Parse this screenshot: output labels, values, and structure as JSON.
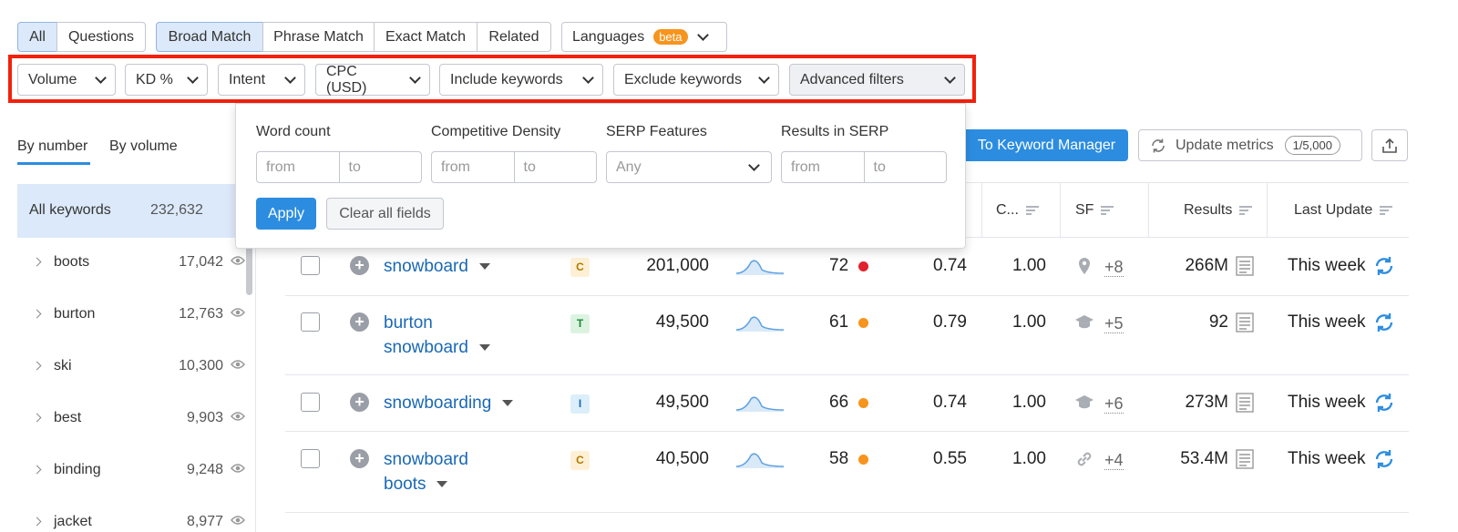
{
  "match_tabs": {
    "group1": [
      "All",
      "Questions"
    ],
    "group2": [
      "Broad Match",
      "Phrase Match",
      "Exact Match",
      "Related"
    ],
    "languages": "Languages",
    "beta": "beta"
  },
  "filters": [
    "Volume",
    "KD %",
    "Intent",
    "CPC (USD)",
    "Include keywords",
    "Exclude keywords",
    "Advanced filters"
  ],
  "advanced_panel": {
    "word_count": "Word count",
    "competitive_density": "Competitive Density",
    "serp_features": "SERP Features",
    "results_in_serp": "Results in SERP",
    "from": "from",
    "to": "to",
    "any": "Any",
    "apply": "Apply",
    "clear": "Clear all fields"
  },
  "view_tabs": {
    "by_number": "By number",
    "by_volume": "By volume"
  },
  "sidebar": {
    "all_label": "All keywords",
    "all_count": "232,632",
    "items": [
      {
        "label": "boots",
        "count": "17,042"
      },
      {
        "label": "burton",
        "count": "12,763"
      },
      {
        "label": "ski",
        "count": "10,300"
      },
      {
        "label": "best",
        "count": "9,903"
      },
      {
        "label": "binding",
        "count": "9,248"
      },
      {
        "label": "jacket",
        "count": "8,977"
      }
    ]
  },
  "toolbar": {
    "keyword_manager": "To Keyword Manager",
    "update_metrics": "Update metrics",
    "quota": "1/5,000"
  },
  "table": {
    "headers": {
      "com": "C...",
      "sf": "SF",
      "results": "Results",
      "last_update": "Last Update"
    },
    "rows": [
      {
        "kw1": "snowboard",
        "kw2": "",
        "intent": "C",
        "volume": "201,000",
        "kd": "72",
        "kd_color": "#e0232e",
        "cpc": "0.74",
        "com": "1.00",
        "sf_icon": "location-pin-icon",
        "sf_more": "+8",
        "results": "266M",
        "updated": "This week"
      },
      {
        "kw1": "burton",
        "kw2": "snowboard",
        "intent": "T",
        "volume": "49,500",
        "kd": "61",
        "kd_color": "#f7941d",
        "cpc": "0.79",
        "com": "1.00",
        "sf_icon": "graduation-cap-icon",
        "sf_more": "+5",
        "results": "92",
        "updated": "This week"
      },
      {
        "kw1": "snowboarding",
        "kw2": "",
        "intent": "I",
        "volume": "49,500",
        "kd": "66",
        "kd_color": "#f7941d",
        "cpc": "0.74",
        "com": "1.00",
        "sf_icon": "graduation-cap-icon",
        "sf_more": "+6",
        "results": "273M",
        "updated": "This week"
      },
      {
        "kw1": "snowboard",
        "kw2": "boots",
        "intent": "C",
        "volume": "40,500",
        "kd": "58",
        "kd_color": "#f7941d",
        "cpc": "0.55",
        "com": "1.00",
        "sf_icon": "link-icon",
        "sf_more": "+4",
        "results": "53.4M",
        "updated": "This week"
      }
    ]
  },
  "colors": {
    "accent": "#2c8de0",
    "highlight_border": "#f2210c",
    "active_tab": "#dce9fa",
    "beta": "#f7941d"
  }
}
